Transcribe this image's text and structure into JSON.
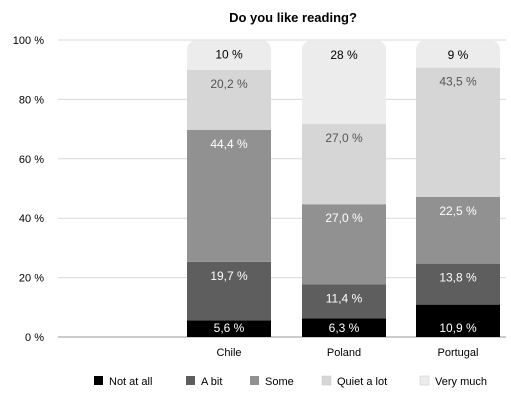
{
  "chart_data": {
    "type": "bar",
    "stacked": true,
    "title": "Do you like reading?",
    "categories": [
      "Chile",
      "Poland",
      "Portugal"
    ],
    "ylim": [
      0,
      100
    ],
    "yticks": [
      0,
      20,
      40,
      60,
      80,
      100
    ],
    "ytick_labels": [
      "0 %",
      "20 %",
      "40 %",
      "60 %",
      "80 %",
      "100 %"
    ],
    "grid": true,
    "legend_position": "bottom",
    "series": [
      {
        "name": "Not at all",
        "color": "#000000",
        "label_color": "#ffffff",
        "values": [
          5.6,
          6.3,
          10.9
        ],
        "labels": [
          "5,6 %",
          "6,3 %",
          "10,9 %"
        ]
      },
      {
        "name": "A bit",
        "color": "#5e5e5e",
        "label_color": "#ffffff",
        "values": [
          19.7,
          11.4,
          13.8
        ],
        "labels": [
          "19,7 %",
          "11,4 %",
          "13,8 %"
        ]
      },
      {
        "name": "Some",
        "color": "#919191",
        "label_color": "#ffffff",
        "values": [
          44.4,
          27.0,
          22.5
        ],
        "labels": [
          "44,4 %",
          "27,0 %",
          "22,5 %"
        ]
      },
      {
        "name": "Quiet a lot",
        "color": "#d6d6d6",
        "label_color": "#555555",
        "values": [
          20.2,
          27.0,
          43.5
        ],
        "labels": [
          "20,2 %",
          "27,0 %",
          "43,5 %"
        ]
      },
      {
        "name": "Very much",
        "color": "#ececec",
        "label_color": "#000000",
        "values": [
          10,
          28,
          9
        ],
        "labels": [
          "10 %",
          "28 %",
          "9 %"
        ]
      }
    ]
  }
}
